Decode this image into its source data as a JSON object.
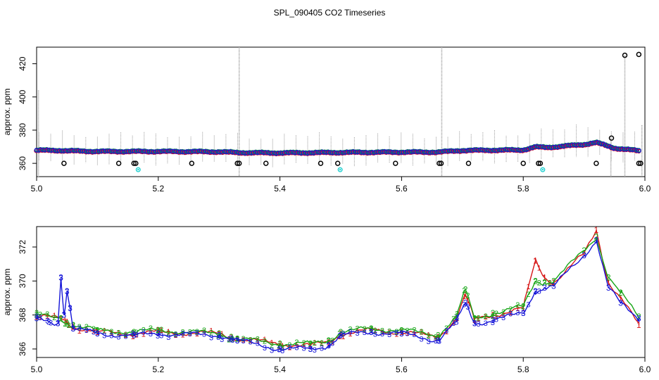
{
  "title": "SPL_090405  CO2 Timeseries",
  "chart_data": [
    {
      "type": "scatter",
      "panel": "top",
      "ylabel": "approx. ppm",
      "xlim": [
        5.0,
        6.0
      ],
      "ylim": [
        352,
        430
      ],
      "xticks": [
        5.0,
        5.2,
        5.4,
        5.6,
        5.8,
        6.0
      ],
      "xtick_labels": [
        "5.0",
        "5.2",
        "5.4",
        "5.6",
        "5.8",
        "6.0"
      ],
      "yticks": [
        360,
        380,
        400,
        420
      ],
      "ytick_labels": [
        "360",
        "380",
        "400",
        "420"
      ],
      "colors": {
        "series": "#1515d8",
        "series2": "#17a617",
        "series3": "#d61515",
        "outlier": "#000000",
        "flag": "#20d0d0",
        "whisker": "#9a9a9a"
      },
      "series": [
        {
          "name": "co2",
          "x": [
            5.0,
            5.04,
            5.05,
            5.1,
            5.2,
            5.3,
            5.33,
            5.4,
            5.5,
            5.6,
            5.66,
            5.7,
            5.8,
            5.82,
            5.84,
            5.9,
            5.92,
            5.95,
            5.99
          ],
          "y": [
            367.9,
            367.8,
            367.6,
            367.2,
            367.2,
            367.0,
            366.5,
            366.3,
            366.6,
            366.8,
            366.8,
            367.8,
            368.1,
            369.9,
            369.6,
            371.4,
            372.6,
            369.2,
            367.6
          ]
        }
      ],
      "low_outliers": {
        "x": [
          5.045,
          5.135,
          5.16,
          5.163,
          5.255,
          5.33,
          5.333,
          5.377,
          5.467,
          5.495,
          5.59,
          5.662,
          5.665,
          5.71,
          5.8,
          5.825,
          5.828,
          5.92,
          5.99,
          5.993
        ],
        "y": 360
      },
      "high_outliers": {
        "x": [
          5.945,
          5.967,
          5.99
        ],
        "y": [
          375.2,
          425.1,
          425.6
        ]
      },
      "flag_points": {
        "x": [
          5.167,
          5.499,
          5.832
        ],
        "y": 356.2
      },
      "whiskers": [
        {
          "x": 5.003,
          "lo": 352,
          "hi": 404
        },
        {
          "x": 5.333,
          "lo": 352,
          "hi": 430
        },
        {
          "x": 5.666,
          "lo": 352,
          "hi": 430
        },
        {
          "x": 5.967,
          "lo": 352,
          "hi": 425
        },
        {
          "x": 5.995,
          "lo": 352,
          "hi": 383
        },
        {
          "x": 5.944,
          "lo": 352,
          "hi": 375
        }
      ]
    },
    {
      "type": "line",
      "panel": "bottom",
      "ylabel": "approx. ppm",
      "xlim": [
        5.0,
        6.0
      ],
      "ylim": [
        365.5,
        373.2
      ],
      "xticks": [
        5.0,
        5.2,
        5.4,
        5.6,
        5.8,
        6.0
      ],
      "xtick_labels": [
        "5.0",
        "5.2",
        "5.4",
        "5.6",
        "5.8",
        "6.0"
      ],
      "yticks": [
        366,
        368,
        370,
        372
      ],
      "ytick_labels": [
        "366",
        "368",
        "370",
        "372"
      ],
      "markers": [
        "1",
        "2",
        "3"
      ],
      "series": [
        {
          "name": "1",
          "color": "#d61515",
          "x": [
            5.0,
            5.04,
            5.05,
            5.06,
            5.1,
            5.16,
            5.2,
            5.3,
            5.32,
            5.33,
            5.4,
            5.45,
            5.48,
            5.5,
            5.55,
            5.6,
            5.66,
            5.69,
            5.705,
            5.72,
            5.75,
            5.8,
            5.82,
            5.835,
            5.85,
            5.9,
            5.92,
            5.94,
            5.96,
            5.99
          ],
          "y": [
            367.9,
            367.8,
            367.6,
            367.3,
            367.0,
            366.9,
            367.0,
            366.9,
            366.7,
            366.6,
            366.3,
            366.2,
            366.4,
            366.9,
            367.1,
            367.0,
            366.7,
            367.8,
            369.2,
            367.7,
            368.0,
            368.4,
            371.2,
            370.2,
            369.9,
            371.6,
            373.0,
            369.9,
            369.0,
            367.4
          ]
        },
        {
          "name": "2",
          "color": "#17a617",
          "x": [
            5.0,
            5.04,
            5.05,
            5.06,
            5.1,
            5.16,
            5.2,
            5.3,
            5.32,
            5.33,
            5.4,
            5.45,
            5.48,
            5.5,
            5.55,
            5.6,
            5.66,
            5.69,
            5.705,
            5.72,
            5.75,
            5.8,
            5.82,
            5.835,
            5.85,
            5.9,
            5.92,
            5.94,
            5.96,
            5.99
          ],
          "y": [
            368.0,
            367.8,
            367.5,
            367.4,
            367.1,
            367.0,
            367.1,
            366.9,
            366.7,
            366.6,
            366.3,
            366.3,
            366.5,
            367.0,
            367.2,
            367.1,
            366.8,
            367.9,
            369.5,
            367.8,
            368.1,
            368.5,
            370.0,
            369.9,
            370.0,
            371.8,
            372.6,
            370.2,
            369.3,
            367.9
          ]
        },
        {
          "name": "3",
          "color": "#1515d8",
          "x": [
            5.0,
            5.02,
            5.035,
            5.04,
            5.045,
            5.05,
            5.055,
            5.06,
            5.1,
            5.16,
            5.2,
            5.3,
            5.32,
            5.33,
            5.4,
            5.45,
            5.48,
            5.5,
            5.55,
            5.6,
            5.66,
            5.69,
            5.705,
            5.72,
            5.75,
            5.8,
            5.82,
            5.835,
            5.85,
            5.9,
            5.92,
            5.94,
            5.96,
            5.99
          ],
          "y": [
            367.8,
            367.6,
            367.5,
            370.2,
            368.0,
            369.4,
            368.4,
            367.2,
            366.9,
            366.8,
            366.9,
            366.8,
            366.6,
            366.5,
            366.0,
            366.0,
            366.2,
            366.8,
            367.0,
            366.9,
            366.5,
            367.6,
            368.7,
            367.5,
            367.7,
            368.1,
            369.4,
            369.6,
            369.7,
            371.5,
            372.4,
            369.6,
            368.7,
            367.8
          ]
        }
      ]
    }
  ]
}
